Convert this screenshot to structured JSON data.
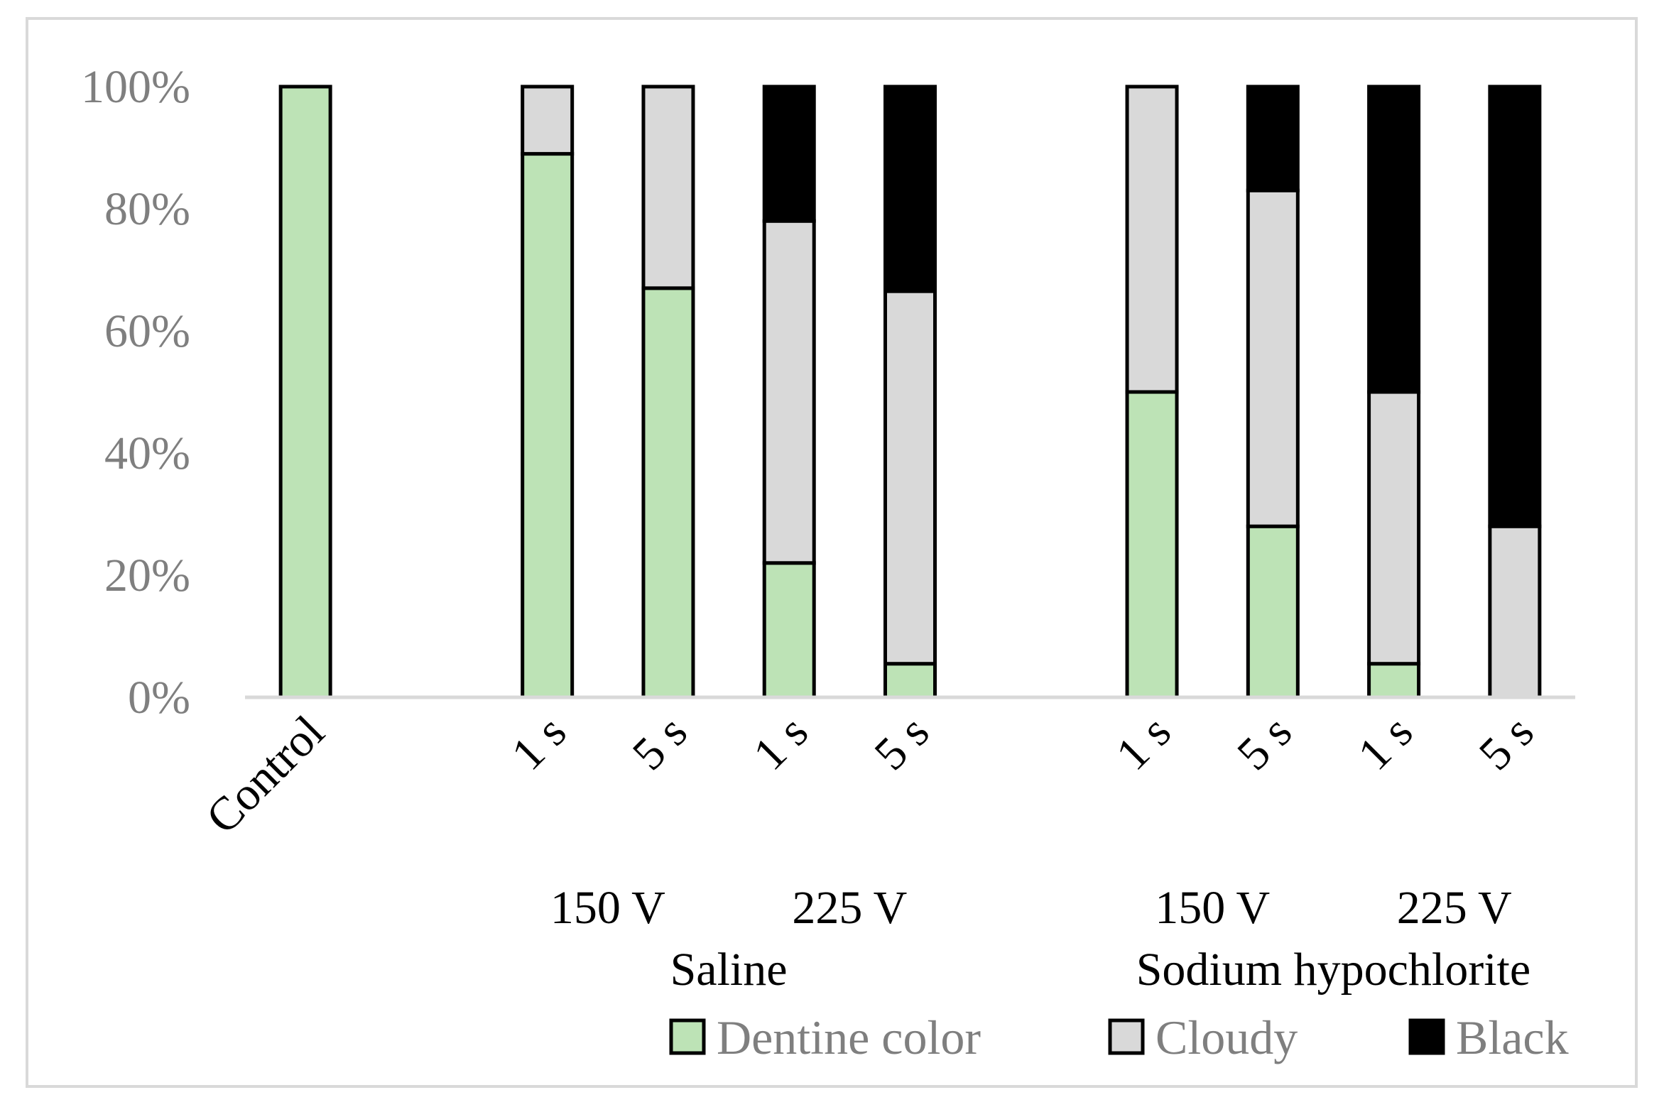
{
  "chart_data": {
    "type": "bar",
    "stacked": true,
    "title": "",
    "xlabel": "",
    "ylabel": "",
    "ylim": [
      0,
      100
    ],
    "yticks": [
      "0%",
      "20%",
      "40%",
      "60%",
      "80%",
      "100%"
    ],
    "yticks_values": [
      0,
      20,
      40,
      60,
      80,
      100
    ],
    "categories": [
      "Control",
      "",
      "1 s",
      "5 s",
      "1 s",
      "5 s",
      "",
      "1 s",
      "5 s",
      "1 s",
      "5 s"
    ],
    "series": [
      {
        "name": "Dentine color",
        "color": "#bde3b6",
        "values": [
          100,
          null,
          89,
          67,
          22,
          5.5,
          null,
          50,
          28,
          5.5,
          0
        ]
      },
      {
        "name": "Cloudy",
        "color": "#d9d9d9",
        "values": [
          0,
          null,
          11,
          33,
          56,
          61,
          null,
          50,
          55,
          44.5,
          28
        ]
      },
      {
        "name": "Black",
        "color": "#000000",
        "values": [
          0,
          null,
          0,
          0,
          22,
          33.5,
          null,
          0,
          17,
          50,
          72
        ]
      }
    ],
    "subgroups": [
      {
        "label": "150 V",
        "categories": [
          2,
          3
        ]
      },
      {
        "label": "225 V",
        "categories": [
          4,
          5
        ]
      },
      {
        "label": "150 V",
        "categories": [
          7,
          8
        ]
      },
      {
        "label": "225 V",
        "categories": [
          9,
          10
        ]
      }
    ],
    "groups": [
      {
        "label": "Saline",
        "categories": [
          2,
          5
        ]
      },
      {
        "label": "Sodium hypochlorite",
        "categories": [
          7,
          10
        ]
      }
    ],
    "legend": "bottom-right"
  }
}
